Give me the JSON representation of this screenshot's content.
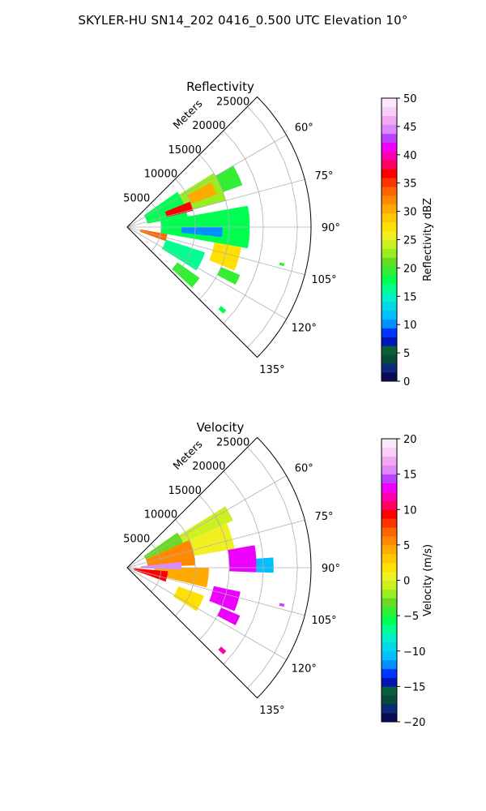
{
  "title": "SKYLER-HU  SN14_202  0416_0.500 UTC Elevation 10°",
  "chart_data": [
    {
      "type": "heatmap",
      "projection": "polar-sector",
      "title": "Reflectivity",
      "range_label": "Meters",
      "range_ticks": [
        5000,
        10000,
        15000,
        20000,
        25000
      ],
      "range_tick_labels": [
        "5000",
        "10000",
        "15000",
        "20000",
        "25000"
      ],
      "range_max": 27000,
      "azimuth_range_deg": [
        45,
        135
      ],
      "azimuth_ticks": [
        60,
        75,
        90,
        105,
        120,
        135
      ],
      "azimuth_tick_labels": [
        "60°",
        "75°",
        "90°",
        "105°",
        "120°",
        "135°"
      ],
      "grid": true,
      "colorbar": {
        "label": "Reflectivity dBZ",
        "min": 0,
        "max": 50,
        "ticks": [
          0,
          5,
          10,
          15,
          20,
          25,
          30,
          35,
          40,
          45,
          50
        ],
        "tick_labels": [
          "0",
          "5",
          "10",
          "15",
          "20",
          "25",
          "30",
          "35",
          "40",
          "45",
          "50"
        ],
        "colors": [
          "#0a0a55",
          "#0d2a78",
          "#0a4a3a",
          "#0b5e3a",
          "#0015b5",
          "#0035ff",
          "#0090ff",
          "#00c0ff",
          "#00d8e8",
          "#00efc8",
          "#00ff90",
          "#00ff50",
          "#33ee33",
          "#66dd22",
          "#99ee22",
          "#ccf022",
          "#f0f020",
          "#ffe000",
          "#ffc800",
          "#ffaa00",
          "#ff8800",
          "#ff6600",
          "#ff3300",
          "#ff0000",
          "#ff0060",
          "#ff00b0",
          "#ee00ff",
          "#c040ff",
          "#dd88ff",
          "#f0a8f0",
          "#f7cff7",
          "#fce8fc"
        ]
      },
      "cells": [
        {
          "r": [
            3000,
            9000
          ],
          "az": [
            55,
            80
          ],
          "value": 18
        },
        {
          "r": [
            9000,
            15000
          ],
          "az": [
            58,
            75
          ],
          "value": 22
        },
        {
          "r": [
            6000,
            10000
          ],
          "az": [
            68,
            76
          ],
          "value": 37
        },
        {
          "r": [
            10000,
            14000
          ],
          "az": [
            62,
            70
          ],
          "value": 30
        },
        {
          "r": [
            15000,
            18000
          ],
          "az": [
            60,
            70
          ],
          "value": 19
        },
        {
          "r": [
            5000,
            18000
          ],
          "az": [
            80,
            100
          ],
          "value": 18
        },
        {
          "r": [
            2000,
            6000
          ],
          "az": [
            100,
            110
          ],
          "value": 34
        },
        {
          "r": [
            6000,
            12000
          ],
          "az": [
            108,
            122
          ],
          "value": 17
        },
        {
          "r": [
            13000,
            17000
          ],
          "az": [
            100,
            112
          ],
          "value": 28
        },
        {
          "r": [
            9000,
            13000
          ],
          "az": [
            125,
            133
          ],
          "value": 19
        },
        {
          "r": [
            15000,
            18000
          ],
          "az": [
            113,
            118
          ],
          "value": 20
        },
        {
          "r": [
            18000,
            19000
          ],
          "az": [
            130,
            132
          ],
          "value": 18
        },
        {
          "r": [
            23000,
            23700
          ],
          "az": [
            103,
            104
          ],
          "value": 20
        },
        {
          "r": [
            8000,
            14000
          ],
          "az": [
            90,
            96
          ],
          "value": 10
        }
      ]
    },
    {
      "type": "heatmap",
      "projection": "polar-sector",
      "title": "Velocity",
      "range_label": "Meters",
      "range_ticks": [
        5000,
        10000,
        15000,
        20000,
        25000
      ],
      "range_tick_labels": [
        "5000",
        "10000",
        "15000",
        "20000",
        "25000"
      ],
      "range_max": 27000,
      "azimuth_range_deg": [
        45,
        135
      ],
      "azimuth_ticks": [
        60,
        75,
        90,
        105,
        120,
        135
      ],
      "azimuth_tick_labels": [
        "60°",
        "75°",
        "90°",
        "105°",
        "120°",
        "135°"
      ],
      "grid": true,
      "colorbar": {
        "label": "Velocity (m/s)",
        "min": -20,
        "max": 20,
        "ticks": [
          -20,
          -15,
          -10,
          -5,
          0,
          5,
          10,
          15,
          20
        ],
        "tick_labels": [
          "−20",
          "−15",
          "−10",
          "−5",
          "0",
          "5",
          "10",
          "15",
          "20"
        ],
        "colors": [
          "#0a0a55",
          "#0d2a78",
          "#0a4a3a",
          "#0b5e3a",
          "#0015b5",
          "#0035ff",
          "#0090ff",
          "#00c0ff",
          "#00d8e8",
          "#00efc8",
          "#00ff90",
          "#00ff50",
          "#33ee33",
          "#66dd22",
          "#99ee22",
          "#ccf022",
          "#f0f020",
          "#ffe000",
          "#ffc800",
          "#ffaa00",
          "#ff8800",
          "#ff6600",
          "#ff3300",
          "#ff0000",
          "#ff0060",
          "#ff00b0",
          "#ee00ff",
          "#c040ff",
          "#dd88ff",
          "#f0a8f0",
          "#f7cff7",
          "#fce8fc"
        ]
      },
      "cells": [
        {
          "r": [
            3000,
            9000
          ],
          "az": [
            55,
            66
          ],
          "value": -3
        },
        {
          "r": [
            9000,
            17000
          ],
          "az": [
            58,
            66
          ],
          "value": -1
        },
        {
          "r": [
            3000,
            10000
          ],
          "az": [
            66,
            88
          ],
          "value": 5
        },
        {
          "r": [
            10000,
            16000
          ],
          "az": [
            66,
            80
          ],
          "value": 1
        },
        {
          "r": [
            15000,
            19000
          ],
          "az": [
            80,
            92
          ],
          "value": 13
        },
        {
          "r": [
            19000,
            21500
          ],
          "az": [
            86,
            92
          ],
          "value": -11
        },
        {
          "r": [
            4000,
            12000
          ],
          "az": [
            90,
            104
          ],
          "value": 4
        },
        {
          "r": [
            1000,
            6000
          ],
          "az": [
            95,
            110
          ],
          "value": 9
        },
        {
          "r": [
            8000,
            12000
          ],
          "az": [
            110,
            122
          ],
          "value": 2
        },
        {
          "r": [
            13000,
            17000
          ],
          "az": [
            102,
            112
          ],
          "value": 13
        },
        {
          "r": [
            15000,
            18000
          ],
          "az": [
            113,
            118
          ],
          "value": 13
        },
        {
          "r": [
            18000,
            19000
          ],
          "az": [
            130,
            132
          ],
          "value": 12
        },
        {
          "r": [
            2000,
            8000
          ],
          "az": [
            84,
            92
          ],
          "value": 15
        },
        {
          "r": [
            23000,
            23700
          ],
          "az": [
            103,
            104
          ],
          "value": 14
        }
      ]
    }
  ]
}
